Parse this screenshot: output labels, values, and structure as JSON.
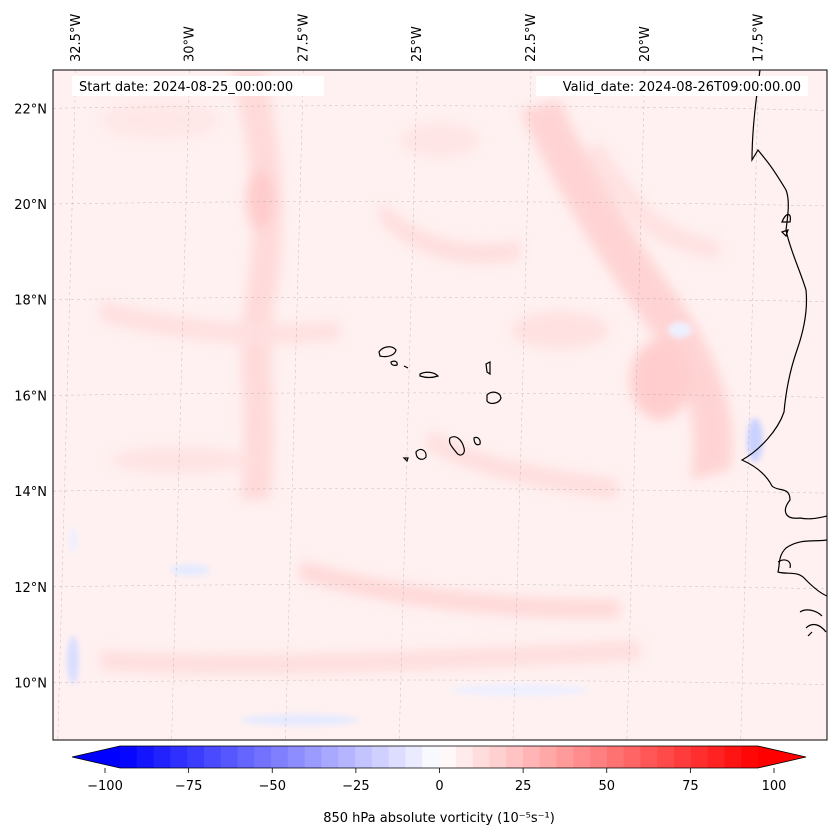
{
  "header": {
    "start_date": "Start date: 2024-08-25_00:00:00",
    "valid_date": "Valid_date: 2024-08-26T09:00:00.00"
  },
  "map": {
    "projection": "lat-lon",
    "extent": {
      "lon_min": -33.0,
      "lon_max": -16.0,
      "lat_min": 8.8,
      "lat_max": 22.8
    },
    "lon_labels": [
      "32.5°W",
      "30°W",
      "27.5°W",
      "25°W",
      "22.5°W",
      "20°W",
      "17.5°W"
    ],
    "lon_values": [
      -32.5,
      -30,
      -27.5,
      -25,
      -22.5,
      -20,
      -17.5
    ],
    "lat_labels": [
      "22°N",
      "20°N",
      "18°N",
      "16°N",
      "14°N",
      "12°N",
      "10°N"
    ],
    "lat_values": [
      22,
      20,
      18,
      16,
      14,
      12,
      10
    ],
    "field": "850 hPa absolute vorticity",
    "background_color": "#fff0f0",
    "coastline_color": "#000000",
    "gridlines": true
  },
  "colorbar": {
    "label": "850 hPa absolute vorticity (10⁻⁵s⁻¹)",
    "ticks": [
      "−100",
      "−75",
      "−50",
      "−25",
      "0",
      "25",
      "50",
      "75",
      "100"
    ],
    "min": -100,
    "max": 100,
    "low_color": "#0000ff",
    "mid_color": "#ffffff",
    "high_color": "#ff0000",
    "extend": "both"
  }
}
